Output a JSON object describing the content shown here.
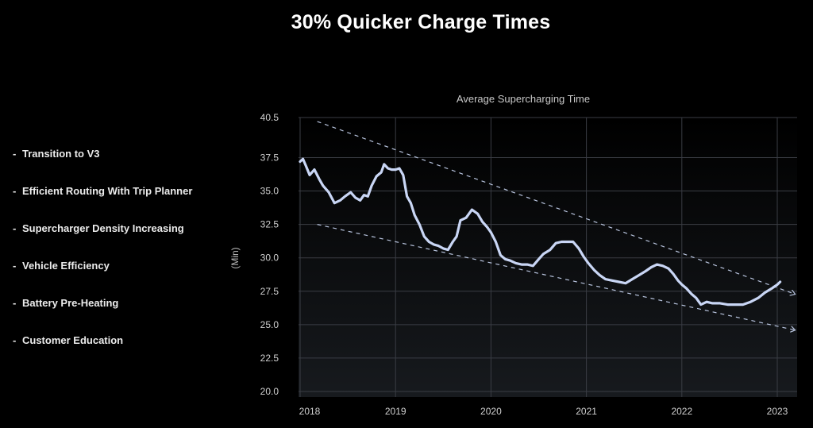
{
  "header": {
    "title": "30% Quicker Charge Times"
  },
  "bullets": [
    "Transition to V3",
    "Efficient Routing With Trip Planner",
    "Supercharger Density Increasing",
    "Vehicle Efficiency",
    "Battery Pre-Heating",
    "Customer Education"
  ],
  "chart_data": {
    "type": "line",
    "title": "Average Supercharging Time",
    "xlabel": "",
    "ylabel": "(Min)",
    "x_ticks": [
      "2018",
      "2019",
      "2020",
      "2021",
      "2022",
      "2023"
    ],
    "y_ticks": [
      "20.0",
      "22.5",
      "25.0",
      "27.5",
      "30.0",
      "32.5",
      "35.0",
      "37.5",
      "40.5"
    ],
    "xlim": [
      2018.0,
      2023.2
    ],
    "ylim": [
      20.0,
      40.5
    ],
    "grid": true,
    "colors": {
      "line": "#c9d6f5",
      "trend": "#b8c4de",
      "grid": "#3a3d44"
    },
    "series": [
      {
        "x": [
          2018.0,
          2018.03,
          2018.06,
          2018.1,
          2018.15,
          2018.2,
          2018.24,
          2018.3,
          2018.36,
          2018.42,
          2018.47,
          2018.53,
          2018.58,
          2018.63,
          2018.67,
          2018.71,
          2018.75,
          2018.8,
          2018.85,
          2018.88,
          2018.92,
          2018.96,
          2019.0,
          2019.04,
          2019.08,
          2019.12,
          2019.16,
          2019.2,
          2019.25,
          2019.3,
          2019.35,
          2019.4,
          2019.45,
          2019.5,
          2019.55,
          2019.6,
          2019.64,
          2019.68,
          2019.74,
          2019.8,
          2019.86,
          2019.91,
          2019.96,
          2020.0,
          2020.05,
          2020.1,
          2020.15,
          2020.2,
          2020.26,
          2020.32,
          2020.38,
          2020.44,
          2020.5,
          2020.55,
          2020.62,
          2020.68,
          2020.74,
          2020.8,
          2020.86,
          2020.92,
          2020.97,
          2021.02,
          2021.08,
          2021.14,
          2021.2,
          2021.27,
          2021.34,
          2021.41,
          2021.48,
          2021.55,
          2021.62,
          2021.68,
          2021.74,
          2021.8,
          2021.86,
          2021.91,
          2021.96,
          2022.0,
          2022.05,
          2022.1,
          2022.15,
          2022.2,
          2022.26,
          2022.32,
          2022.4,
          2022.48,
          2022.56,
          2022.64,
          2022.72,
          2022.8,
          2022.87,
          2022.94,
          2023.0,
          2023.03
        ],
        "y": [
          37.2,
          37.4,
          36.9,
          36.2,
          36.6,
          35.9,
          35.4,
          34.9,
          34.1,
          34.3,
          34.6,
          34.9,
          34.5,
          34.3,
          34.7,
          34.6,
          35.4,
          36.1,
          36.4,
          37.0,
          36.7,
          36.6,
          36.6,
          36.7,
          36.2,
          34.6,
          34.1,
          33.2,
          32.5,
          31.6,
          31.2,
          31.0,
          30.9,
          30.7,
          30.6,
          31.2,
          31.6,
          32.8,
          33.0,
          33.6,
          33.3,
          32.7,
          32.3,
          31.9,
          31.2,
          30.2,
          29.9,
          29.8,
          29.6,
          29.5,
          29.5,
          29.4,
          29.9,
          30.3,
          30.6,
          31.1,
          31.2,
          31.2,
          31.2,
          30.7,
          30.1,
          29.6,
          29.1,
          28.7,
          28.4,
          28.3,
          28.2,
          28.1,
          28.4,
          28.7,
          29.0,
          29.3,
          29.5,
          29.4,
          29.2,
          28.8,
          28.3,
          28.0,
          27.7,
          27.3,
          27.0,
          26.5,
          26.7,
          26.6,
          26.6,
          26.5,
          26.5,
          26.5,
          26.7,
          27.0,
          27.4,
          27.7,
          28.0,
          28.2
        ]
      }
    ],
    "trendlines": [
      {
        "x": [
          2018.18,
          2023.18
        ],
        "y": [
          40.2,
          27.3
        ]
      },
      {
        "x": [
          2018.18,
          2023.18
        ],
        "y": [
          32.5,
          24.6
        ]
      }
    ]
  }
}
